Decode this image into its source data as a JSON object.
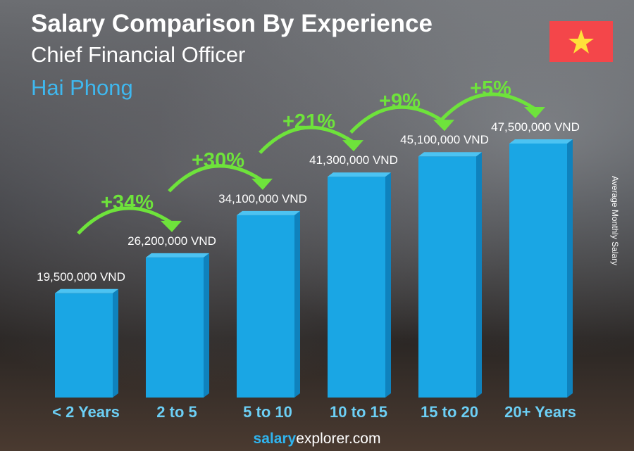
{
  "chart_data": {
    "type": "bar",
    "title": "Salary Comparison By Experience",
    "subtitle": "Chief Financial Officer",
    "location": "Hai Phong",
    "ylabel": "Average Monthly Salary",
    "categories": [
      "< 2 Years",
      "2 to 5",
      "5 to 10",
      "10 to 15",
      "15 to 20",
      "20+ Years"
    ],
    "values": [
      19500000,
      26200000,
      34100000,
      41300000,
      45100000,
      47500000
    ],
    "value_labels": [
      "19,500,000 VND",
      "26,200,000 VND",
      "34,100,000 VND",
      "41,300,000 VND",
      "45,100,000 VND",
      "47,500,000 VND"
    ],
    "increases": [
      "+34%",
      "+30%",
      "+21%",
      "+9%",
      "+5%"
    ],
    "unit": "VND",
    "colors": {
      "bar": "#1aa6e4",
      "bar_side": "#0f82bd",
      "bar_top": "#4cc3f2",
      "arrow": "#6ee33b",
      "category": "#6ccff5",
      "city": "#3fb8ef"
    }
  },
  "flag": {
    "name": "vietnam-flag",
    "colors": [
      "#f4464a",
      "#ffe13a"
    ]
  },
  "footer": {
    "brand_bold": "salary",
    "brand_rest": "explorer.com"
  }
}
